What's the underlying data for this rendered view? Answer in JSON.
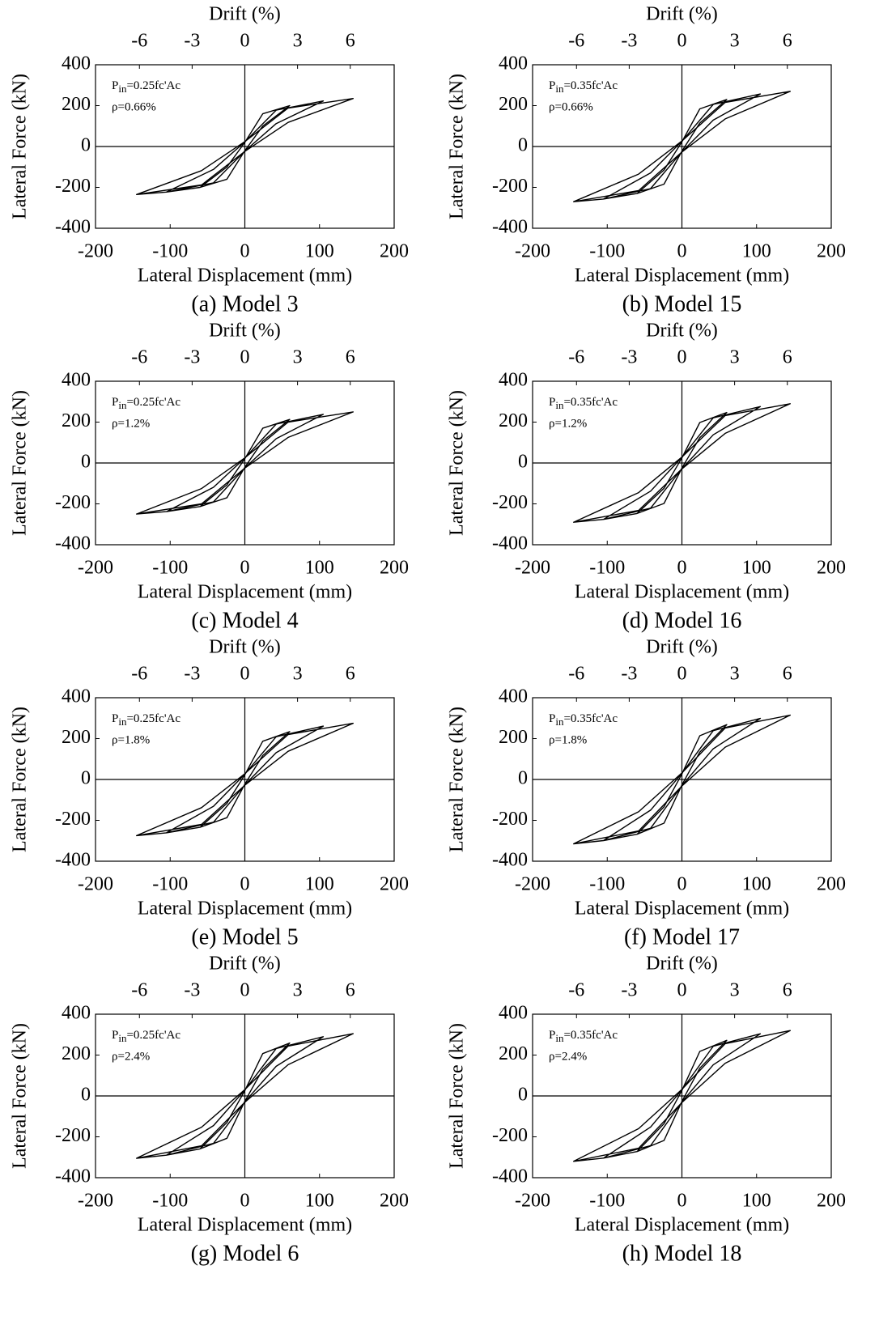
{
  "chart_data": [
    {
      "type": "line",
      "title": "(a) Model 3",
      "xlabel": "Lateral Displacement (mm)",
      "ylabel": "Lateral Force (kN)",
      "x2label": "Drift (%)",
      "xlim": [
        -200,
        200
      ],
      "xticks": [
        -200,
        -100,
        0,
        100,
        200
      ],
      "ylim": [
        -400,
        400
      ],
      "yticks": [
        -400,
        -200,
        0,
        200,
        400
      ],
      "x2lim": [
        -8.5,
        8.5
      ],
      "x2ticks": [
        -6,
        -3,
        0,
        3,
        6
      ],
      "annotation": {
        "symbol": "P",
        "subscript": "in",
        "value": "=0.25fc'Ac",
        "reinforcement": "ρ=0.66%"
      },
      "series": [
        {
          "color": "#000000",
          "x": [
            -60,
            -24,
            0,
            24,
            60,
            24,
            0,
            -24,
            -60,
            -105,
            -42,
            0,
            42,
            105,
            42,
            0,
            -42,
            -105,
            -145,
            -58,
            0,
            58,
            145,
            58,
            0,
            -58,
            -145
          ],
          "values": [
            -200,
            -160,
            -20,
            100,
            200,
            160,
            20,
            -100,
            -200,
            -223,
            -178,
            -22,
            112,
            223,
            178,
            22,
            -112,
            -223,
            -235,
            -188,
            -24,
            118,
            235,
            188,
            24,
            -118,
            -235
          ]
        }
      ]
    },
    {
      "type": "line",
      "title": "(b) Model 15",
      "xlabel": "Lateral Displacement (mm)",
      "ylabel": "Lateral Force (kN)",
      "x2label": "Drift (%)",
      "xlim": [
        -200,
        200
      ],
      "xticks": [
        -200,
        -100,
        0,
        100,
        200
      ],
      "ylim": [
        -400,
        400
      ],
      "yticks": [
        -400,
        -200,
        0,
        200,
        400
      ],
      "x2lim": [
        -8.5,
        8.5
      ],
      "x2ticks": [
        -6,
        -3,
        0,
        3,
        6
      ],
      "annotation": {
        "symbol": "P",
        "subscript": "in",
        "value": "=0.35fc'Ac",
        "reinforcement": "ρ=0.66%"
      },
      "series": [
        {
          "color": "#000000",
          "x": [
            -60,
            -24,
            0,
            24,
            60,
            24,
            0,
            -24,
            -60,
            -105,
            -42,
            0,
            42,
            105,
            42,
            0,
            -42,
            -105,
            -145,
            -58,
            0,
            58,
            145,
            58,
            0,
            -58,
            -145
          ],
          "values": [
            -230,
            -184,
            -23,
            115,
            230,
            184,
            23,
            -115,
            -230,
            -257,
            -206,
            -26,
            129,
            257,
            206,
            26,
            -129,
            -257,
            -270,
            -216,
            -27,
            135,
            270,
            216,
            27,
            -135,
            -270
          ]
        }
      ]
    },
    {
      "type": "line",
      "title": "(c) Model 4",
      "xlabel": "Lateral Displacement (mm)",
      "ylabel": "Lateral Force (kN)",
      "x2label": "Drift (%)",
      "xlim": [
        -200,
        200
      ],
      "xticks": [
        -200,
        -100,
        0,
        100,
        200
      ],
      "ylim": [
        -400,
        400
      ],
      "yticks": [
        -400,
        -200,
        0,
        200,
        400
      ],
      "x2lim": [
        -8.5,
        8.5
      ],
      "x2ticks": [
        -6,
        -3,
        0,
        3,
        6
      ],
      "annotation": {
        "symbol": "P",
        "subscript": "in",
        "value": "=0.25fc'Ac",
        "reinforcement": "ρ=1.2%"
      },
      "series": [
        {
          "color": "#000000",
          "x": [
            -60,
            -24,
            0,
            24,
            60,
            24,
            0,
            -24,
            -60,
            -105,
            -42,
            0,
            42,
            105,
            42,
            0,
            -42,
            -105,
            -145,
            -58,
            0,
            58,
            145,
            58,
            0,
            -58,
            -145
          ],
          "values": [
            -213,
            -170,
            -21,
            107,
            213,
            170,
            21,
            -107,
            -213,
            -238,
            -190,
            -24,
            119,
            238,
            190,
            24,
            -119,
            -238,
            -250,
            -200,
            -25,
            125,
            250,
            200,
            25,
            -125,
            -250
          ]
        }
      ]
    },
    {
      "type": "line",
      "title": "(d) Model 16",
      "xlabel": "Lateral Displacement (mm)",
      "ylabel": "Lateral Force (kN)",
      "x2label": "Drift (%)",
      "xlim": [
        -200,
        200
      ],
      "xticks": [
        -200,
        -100,
        0,
        100,
        200
      ],
      "ylim": [
        -400,
        400
      ],
      "yticks": [
        -400,
        -200,
        0,
        200,
        400
      ],
      "x2lim": [
        -8.5,
        8.5
      ],
      "x2ticks": [
        -6,
        -3,
        0,
        3,
        6
      ],
      "annotation": {
        "symbol": "P",
        "subscript": "in",
        "value": "=0.35fc'Ac",
        "reinforcement": "ρ=1.2%"
      },
      "series": [
        {
          "color": "#000000",
          "x": [
            -60,
            -24,
            0,
            24,
            60,
            24,
            0,
            -24,
            -60,
            -105,
            -42,
            0,
            42,
            105,
            42,
            0,
            -42,
            -105,
            -145,
            -58,
            0,
            58,
            145,
            58,
            0,
            -58,
            -145
          ],
          "values": [
            -247,
            -198,
            -25,
            124,
            247,
            198,
            25,
            -124,
            -247,
            -276,
            -221,
            -28,
            138,
            276,
            221,
            28,
            -138,
            -276,
            -290,
            -232,
            -29,
            145,
            290,
            232,
            29,
            -145,
            -290
          ]
        }
      ]
    },
    {
      "type": "line",
      "title": "(e) Model 5",
      "xlabel": "Lateral Displacement (mm)",
      "ylabel": "Lateral Force (kN)",
      "x2label": "Drift (%)",
      "xlim": [
        -200,
        200
      ],
      "xticks": [
        -200,
        -100,
        0,
        100,
        200
      ],
      "ylim": [
        -400,
        400
      ],
      "yticks": [
        -400,
        -200,
        0,
        200,
        400
      ],
      "x2lim": [
        -8.5,
        8.5
      ],
      "x2ticks": [
        -6,
        -3,
        0,
        3,
        6
      ],
      "annotation": {
        "symbol": "P",
        "subscript": "in",
        "value": "=0.25fc'Ac",
        "reinforcement": "ρ=1.8%"
      },
      "series": [
        {
          "color": "#000000",
          "x": [
            -60,
            -24,
            0,
            24,
            60,
            24,
            0,
            -24,
            -60,
            -105,
            -42,
            0,
            42,
            105,
            42,
            0,
            -42,
            -105,
            -145,
            -58,
            0,
            58,
            145,
            58,
            0,
            -58,
            -145
          ],
          "values": [
            -234,
            -187,
            -23,
            117,
            234,
            187,
            23,
            -117,
            -234,
            -261,
            -209,
            -26,
            131,
            261,
            209,
            26,
            -131,
            -261,
            -275,
            -220,
            -28,
            138,
            275,
            220,
            28,
            -138,
            -275
          ]
        }
      ]
    },
    {
      "type": "line",
      "title": "(f) Model 17",
      "xlabel": "Lateral Displacement (mm)",
      "ylabel": "Lateral Force (kN)",
      "x2label": "Drift (%)",
      "xlim": [
        -200,
        200
      ],
      "xticks": [
        -200,
        -100,
        0,
        100,
        200
      ],
      "ylim": [
        -400,
        400
      ],
      "yticks": [
        -400,
        -200,
        0,
        200,
        400
      ],
      "x2lim": [
        -8.5,
        8.5
      ],
      "x2ticks": [
        -6,
        -3,
        0,
        3,
        6
      ],
      "annotation": {
        "symbol": "P",
        "subscript": "in",
        "value": "=0.35fc'Ac",
        "reinforcement": "ρ=1.8%"
      },
      "series": [
        {
          "color": "#000000",
          "x": [
            -60,
            -24,
            0,
            24,
            60,
            24,
            0,
            -24,
            -60,
            -105,
            -42,
            0,
            42,
            105,
            42,
            0,
            -42,
            -105,
            -145,
            -58,
            0,
            58,
            145,
            58,
            0,
            -58,
            -145
          ],
          "values": [
            -268,
            -214,
            -27,
            134,
            268,
            214,
            27,
            -134,
            -268,
            -299,
            -239,
            -30,
            150,
            299,
            239,
            30,
            -150,
            -299,
            -315,
            -252,
            -32,
            158,
            315,
            252,
            32,
            -158,
            -315
          ]
        }
      ]
    },
    {
      "type": "line",
      "title": "(g) Model 6",
      "xlabel": "Lateral Displacement (mm)",
      "ylabel": "Lateral Force (kN)",
      "x2label": "Drift (%)",
      "xlim": [
        -200,
        200
      ],
      "xticks": [
        -200,
        -100,
        0,
        100,
        200
      ],
      "ylim": [
        -400,
        400
      ],
      "yticks": [
        -400,
        -200,
        0,
        200,
        400
      ],
      "x2lim": [
        -8.5,
        8.5
      ],
      "x2ticks": [
        -6,
        -3,
        0,
        3,
        6
      ],
      "annotation": {
        "symbol": "P",
        "subscript": "in",
        "value": "=0.25fc'Ac",
        "reinforcement": "ρ=2.4%"
      },
      "series": [
        {
          "color": "#000000",
          "x": [
            -60,
            -24,
            0,
            24,
            60,
            24,
            0,
            -24,
            -60,
            -105,
            -42,
            0,
            42,
            105,
            42,
            0,
            -42,
            -105,
            -145,
            -58,
            0,
            58,
            145,
            58,
            0,
            -58,
            -145
          ],
          "values": [
            -259,
            -207,
            -26,
            130,
            259,
            207,
            26,
            -130,
            -259,
            -290,
            -232,
            -29,
            145,
            290,
            232,
            29,
            -145,
            -290,
            -305,
            -244,
            -31,
            153,
            305,
            244,
            31,
            -153,
            -305
          ]
        }
      ]
    },
    {
      "type": "line",
      "title": "(h) Model 18",
      "xlabel": "Lateral Displacement (mm)",
      "ylabel": "Lateral Force (kN)",
      "x2label": "Drift (%)",
      "xlim": [
        -200,
        200
      ],
      "xticks": [
        -200,
        -100,
        0,
        100,
        200
      ],
      "ylim": [
        -400,
        400
      ],
      "yticks": [
        -400,
        -200,
        0,
        200,
        400
      ],
      "x2lim": [
        -8.5,
        8.5
      ],
      "x2ticks": [
        -6,
        -3,
        0,
        3,
        6
      ],
      "annotation": {
        "symbol": "P",
        "subscript": "in",
        "value": "=0.35fc'Ac",
        "reinforcement": "ρ=2.4%"
      },
      "series": [
        {
          "color": "#000000",
          "x": [
            -60,
            -24,
            0,
            24,
            60,
            24,
            0,
            -24,
            -60,
            -105,
            -42,
            0,
            42,
            105,
            42,
            0,
            -42,
            -105,
            -145,
            -58,
            0,
            58,
            145,
            58,
            0,
            -58,
            -145
          ],
          "values": [
            -272,
            -218,
            -27,
            136,
            272,
            218,
            27,
            -136,
            -272,
            -304,
            -243,
            -30,
            152,
            304,
            243,
            30,
            -152,
            -304,
            -320,
            -256,
            -32,
            160,
            320,
            256,
            32,
            -160,
            -320
          ]
        }
      ]
    }
  ]
}
